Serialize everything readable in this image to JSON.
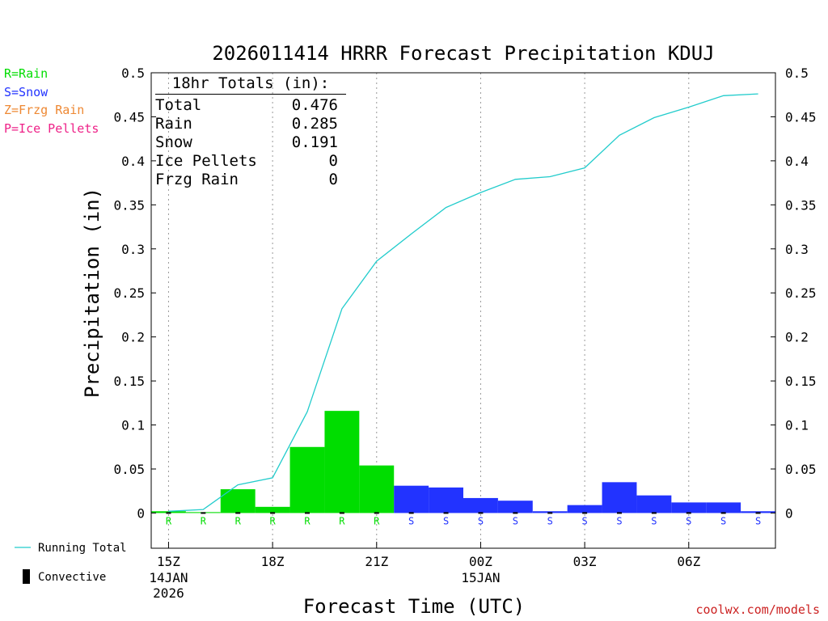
{
  "legend": {
    "rain": "R=Rain",
    "snow": "S=Snow",
    "frzg": "Z=Frzg Rain",
    "ice": "P=Ice Pellets",
    "running_total": "Running Total",
    "convective": "Convective"
  },
  "colors": {
    "rain": "#00dd00",
    "snow": "#2233ff",
    "frzg": "#ee8833",
    "ice": "#ee2288",
    "running_total": "#22cccc",
    "credit": "#cc2222"
  },
  "totals": {
    "heading": "18hr Totals (in):",
    "rows": [
      {
        "label": "Total",
        "value": "0.476"
      },
      {
        "label": "Rain",
        "value": "0.285"
      },
      {
        "label": "Snow",
        "value": "0.191"
      },
      {
        "label": "Ice Pellets",
        "value": "0"
      },
      {
        "label": "Frzg Rain",
        "value": "0"
      }
    ]
  },
  "credit": "coolwx.com/models",
  "chart_data": {
    "type": "bar",
    "title": "2026011414 HRRR Forecast Precipitation KDUJ",
    "xlabel": "Forecast Time (UTC)",
    "ylabel": "Precipitation (in)",
    "ylim": [
      -0.04,
      0.5
    ],
    "yticks": [
      0,
      0.05,
      0.1,
      0.15,
      0.2,
      0.25,
      0.3,
      0.35,
      0.4,
      0.45,
      0.5
    ],
    "ytick_labels": [
      "0",
      "0.05",
      "0.1",
      "0.15",
      "0.2",
      "0.25",
      "0.3",
      "0.35",
      "0.4",
      "0.45",
      "0.5"
    ],
    "xlim": [
      14.5,
      32.5
    ],
    "hours": [
      15,
      16,
      17,
      18,
      19,
      20,
      21,
      22,
      23,
      24,
      25,
      26,
      27,
      28,
      29,
      30,
      31,
      32
    ],
    "ptype": [
      "R",
      "R",
      "R",
      "R",
      "R",
      "R",
      "R",
      "S",
      "S",
      "S",
      "S",
      "S",
      "S",
      "S",
      "S",
      "S",
      "S",
      "S"
    ],
    "values": [
      0.002,
      0.001,
      0.027,
      0.007,
      0.075,
      0.116,
      0.054,
      0.031,
      0.029,
      0.017,
      0.014,
      0.002,
      0.009,
      0.035,
      0.02,
      0.012,
      0.012,
      0.002
    ],
    "running_total": [
      0.002,
      0.003,
      0.03,
      0.037,
      0.112,
      0.228,
      0.282,
      0.313,
      0.342,
      0.359,
      0.373,
      0.375,
      0.384,
      0.419,
      0.439,
      0.451,
      0.463,
      0.476
    ],
    "total_line_points": [
      {
        "x": 15.0,
        "y": 0.002
      },
      {
        "x": 16.0,
        "y": 0.004
      },
      {
        "x": 17.0,
        "y": 0.032
      },
      {
        "x": 18.0,
        "y": 0.04
      },
      {
        "x": 19.0,
        "y": 0.115
      },
      {
        "x": 20.0,
        "y": 0.232
      },
      {
        "x": 21.0,
        "y": 0.286
      },
      {
        "x": 22.0,
        "y": 0.317
      },
      {
        "x": 23.0,
        "y": 0.347
      },
      {
        "x": 24.0,
        "y": 0.364
      },
      {
        "x": 25.0,
        "y": 0.379
      },
      {
        "x": 26.0,
        "y": 0.382
      },
      {
        "x": 27.0,
        "y": 0.392
      },
      {
        "x": 28.0,
        "y": 0.429
      },
      {
        "x": 29.0,
        "y": 0.449
      },
      {
        "x": 30.0,
        "y": 0.461
      },
      {
        "x": 31.0,
        "y": 0.474
      },
      {
        "x": 32.0,
        "y": 0.476
      }
    ],
    "xticks": [
      {
        "hour": 15,
        "label": "15Z",
        "sub1": "14JAN",
        "sub2": "2026"
      },
      {
        "hour": 18,
        "label": "18Z",
        "sub1": "",
        "sub2": ""
      },
      {
        "hour": 21,
        "label": "21Z",
        "sub1": "",
        "sub2": ""
      },
      {
        "hour": 24,
        "label": "00Z",
        "sub1": "15JAN",
        "sub2": ""
      },
      {
        "hour": 27,
        "label": "03Z",
        "sub1": "",
        "sub2": ""
      },
      {
        "hour": 30,
        "label": "06Z",
        "sub1": "",
        "sub2": ""
      }
    ],
    "grid_hours": [
      15,
      18,
      21,
      24,
      27,
      30
    ]
  }
}
